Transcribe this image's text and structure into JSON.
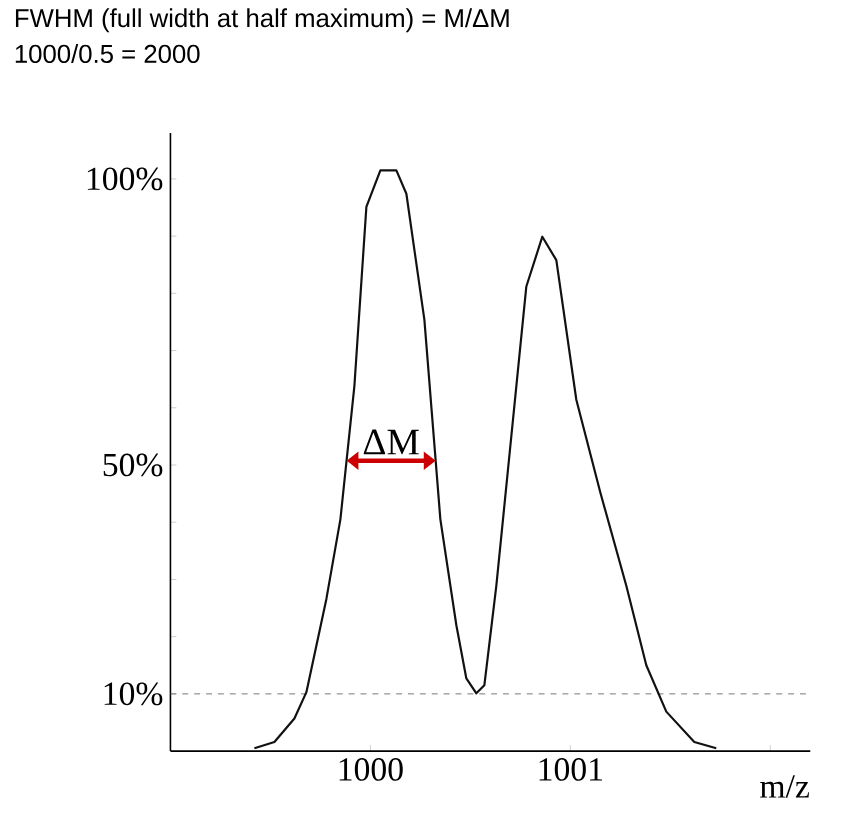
{
  "chart_data": {
    "type": "line",
    "title": "FWHM (full width at half maximum) = M/ΔM",
    "subtitle": "1000/0.5 = 2000",
    "xlabel": "m/z",
    "color": "#111111",
    "marker": "none",
    "x": [
      999.42,
      999.52,
      999.62,
      999.68,
      999.78,
      999.85,
      999.92,
      999.98,
      1000.05,
      1000.13,
      1000.18,
      1000.27,
      1000.35,
      1000.43,
      1000.48,
      1000.53,
      1000.57,
      1000.63,
      1000.72,
      1000.78,
      1000.86,
      1000.93,
      1001.03,
      1001.15,
      1001.28,
      1001.38,
      1001.48,
      1001.62,
      1001.73
    ],
    "values": [
      0.5,
      1.6,
      5.7,
      10.3,
      26.6,
      40.5,
      63.8,
      95.1,
      101.5,
      101.5,
      97.4,
      75.4,
      40.5,
      22,
      12.7,
      10.1,
      11.5,
      28.9,
      60.3,
      81.2,
      89.9,
      85.8,
      61.4,
      45.2,
      28.9,
      15,
      6.9,
      1.6,
      0.5
    ],
    "xlim": [
      999,
      1002.2
    ],
    "ylim": [
      0,
      108
    ],
    "xticks": [
      1000,
      1001,
      {
        "value": 1002,
        "label": null
      }
    ],
    "yticks": [
      {
        "value": 10,
        "label": "10%"
      },
      {
        "value": 20,
        "label": null
      },
      {
        "value": 30,
        "label": null
      },
      {
        "value": 40,
        "label": null
      },
      {
        "value": 50,
        "label": "50%"
      },
      {
        "value": 60,
        "label": null
      },
      {
        "value": 70,
        "label": null
      },
      {
        "value": 80,
        "label": null
      },
      {
        "value": 90,
        "label": null
      },
      {
        "value": 100,
        "label": "100%"
      }
    ],
    "ref_lines": [
      {
        "axis": "y",
        "value": 10,
        "color": "#555555",
        "line_style": "dashed"
      }
    ],
    "annotations": [
      "ΔM"
    ]
  }
}
